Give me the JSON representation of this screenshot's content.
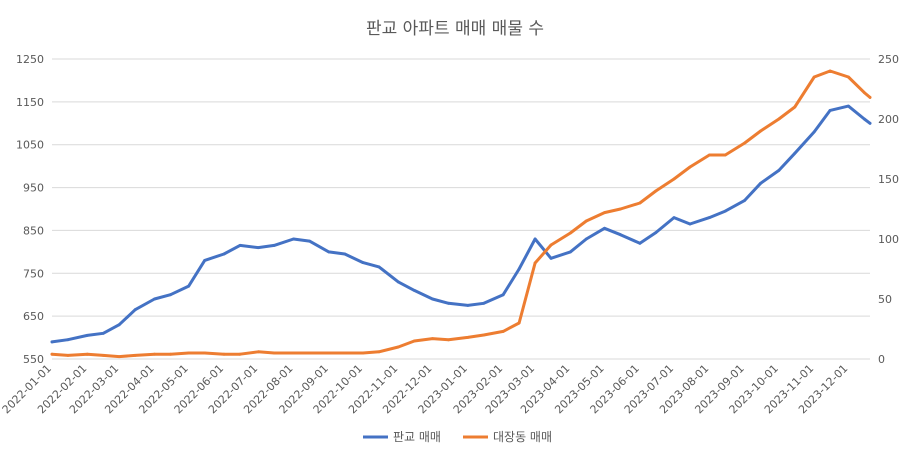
{
  "chart_data": {
    "type": "line",
    "title": "판교 아파트 매매 매물 수",
    "x_range": [
      "2022-01-01",
      "2023-12-20"
    ],
    "x_tick_labels": [
      "2022-01-01",
      "2022-02-01",
      "2022-03-01",
      "2022-04-01",
      "2022-05-01",
      "2022-06-01",
      "2022-07-01",
      "2022-08-01",
      "2022-09-01",
      "2022-10-01",
      "2022-11-01",
      "2022-12-01",
      "2023-01-01",
      "2023-02-01",
      "2023-03-01",
      "2023-04-01",
      "2023-05-01",
      "2023-06-01",
      "2023-07-01",
      "2023-08-01",
      "2023-09-01",
      "2023-10-01",
      "2023-11-01",
      "2023-12-01"
    ],
    "y_left": {
      "min": 550,
      "max": 1250,
      "ticks": [
        550,
        650,
        750,
        850,
        950,
        1050,
        1150,
        1250
      ],
      "labels": [
        "550",
        "650",
        "750",
        "850",
        "950",
        "1050",
        "1150",
        "1250"
      ]
    },
    "y_right": {
      "min": 0,
      "max": 250,
      "ticks": [
        0,
        50,
        100,
        150,
        200,
        250
      ],
      "labels": [
        "0",
        "50",
        "100",
        "150",
        "200",
        "250"
      ]
    },
    "series": [
      {
        "name": "판교 매매",
        "axis": "left",
        "color": "#4472c4",
        "x": [
          "2022-01-01",
          "2022-01-15",
          "2022-02-01",
          "2022-02-15",
          "2022-03-01",
          "2022-03-15",
          "2022-04-01",
          "2022-04-15",
          "2022-05-01",
          "2022-05-15",
          "2022-06-01",
          "2022-06-15",
          "2022-07-01",
          "2022-07-15",
          "2022-08-01",
          "2022-08-15",
          "2022-09-01",
          "2022-09-15",
          "2022-10-01",
          "2022-10-15",
          "2022-11-01",
          "2022-11-15",
          "2022-12-01",
          "2022-12-15",
          "2023-01-01",
          "2023-01-15",
          "2023-02-01",
          "2023-02-15",
          "2023-03-01",
          "2023-03-15",
          "2023-04-01",
          "2023-04-15",
          "2023-05-01",
          "2023-05-15",
          "2023-06-01",
          "2023-06-15",
          "2023-07-01",
          "2023-07-15",
          "2023-08-01",
          "2023-08-15",
          "2023-09-01",
          "2023-09-15",
          "2023-10-01",
          "2023-10-15",
          "2023-11-01",
          "2023-11-15",
          "2023-12-01",
          "2023-12-15",
          "2023-12-20"
        ],
        "values": [
          590,
          595,
          605,
          610,
          630,
          665,
          690,
          700,
          720,
          780,
          795,
          815,
          810,
          815,
          830,
          825,
          800,
          795,
          775,
          765,
          730,
          710,
          690,
          680,
          675,
          680,
          700,
          760,
          830,
          785,
          800,
          830,
          855,
          840,
          820,
          845,
          880,
          865,
          880,
          895,
          920,
          960,
          990,
          1030,
          1080,
          1130,
          1140,
          1110,
          1100
        ]
      },
      {
        "name": "대장동 매매",
        "axis": "right",
        "color": "#ed7d31",
        "x": [
          "2022-01-01",
          "2022-01-15",
          "2022-02-01",
          "2022-02-15",
          "2022-03-01",
          "2022-03-15",
          "2022-04-01",
          "2022-04-15",
          "2022-05-01",
          "2022-05-15",
          "2022-06-01",
          "2022-06-15",
          "2022-07-01",
          "2022-07-15",
          "2022-08-01",
          "2022-08-15",
          "2022-09-01",
          "2022-09-15",
          "2022-10-01",
          "2022-10-15",
          "2022-11-01",
          "2022-11-15",
          "2022-12-01",
          "2022-12-15",
          "2023-01-01",
          "2023-01-15",
          "2023-02-01",
          "2023-02-15",
          "2023-03-01",
          "2023-03-15",
          "2023-04-01",
          "2023-04-15",
          "2023-05-01",
          "2023-05-15",
          "2023-06-01",
          "2023-06-15",
          "2023-07-01",
          "2023-07-15",
          "2023-08-01",
          "2023-08-15",
          "2023-09-01",
          "2023-09-15",
          "2023-10-01",
          "2023-10-15",
          "2023-11-01",
          "2023-11-15",
          "2023-12-01",
          "2023-12-15",
          "2023-12-20"
        ],
        "values": [
          4,
          3,
          4,
          3,
          2,
          3,
          4,
          4,
          5,
          5,
          4,
          4,
          6,
          5,
          5,
          5,
          5,
          5,
          5,
          6,
          10,
          15,
          17,
          16,
          18,
          20,
          23,
          30,
          80,
          95,
          105,
          115,
          122,
          125,
          130,
          140,
          150,
          160,
          170,
          170,
          180,
          190,
          200,
          210,
          235,
          240,
          235,
          222,
          218
        ]
      }
    ],
    "legend": {
      "position": "bottom",
      "entries": [
        "판교 매매",
        "대장동 매매"
      ]
    }
  }
}
